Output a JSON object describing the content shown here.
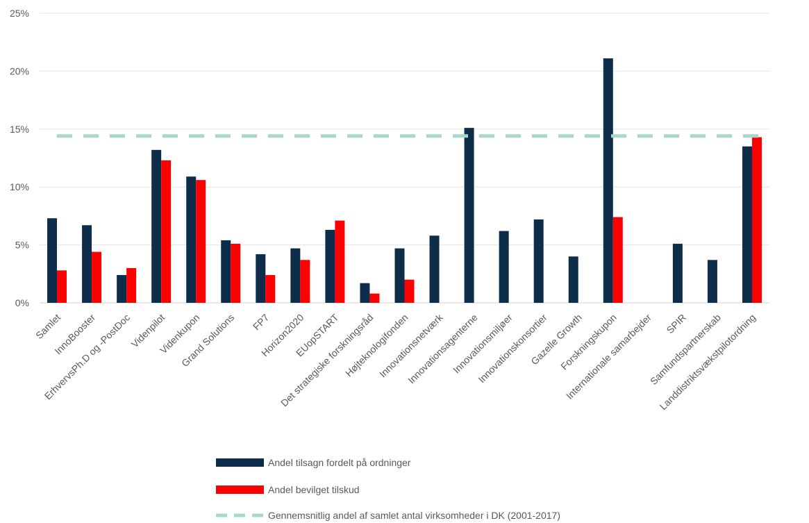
{
  "chart_data": {
    "type": "bar",
    "title": "",
    "xlabel": "",
    "ylabel": "",
    "ylim": [
      0,
      25
    ],
    "y_ticks": [
      "0%",
      "5%",
      "10%",
      "15%",
      "20%",
      "25%"
    ],
    "y_tick_values": [
      0,
      5,
      10,
      15,
      20,
      25
    ],
    "grid": true,
    "legend_position": "bottom",
    "categories": [
      "Samlet",
      "InnoBooster",
      "ErhvervsPh.D og -PostDoc",
      "Videnpilot",
      "Videnkupon",
      "Grand Solutions",
      "FP7",
      "Horizon2020",
      "EUopSTART",
      "Det strategiske forskningsråd",
      "Højteknologifonden",
      "Innovationsnetværk",
      "Innovationsagenterne",
      "Innovationsmiljøer",
      "Innovationskonsortier",
      "Gazelle Growth",
      "Forskningskupon",
      "Internationale samarbejder",
      "SPIR",
      "Samfundspartnerskab",
      "Landdistriktsvækstpilotordning"
    ],
    "series": [
      {
        "name": "Andel tilsagn fordelt på ordninger",
        "color": "#0e2d4a",
        "values": [
          7.3,
          6.7,
          2.4,
          13.2,
          10.9,
          5.4,
          4.2,
          4.7,
          6.3,
          1.7,
          4.7,
          5.8,
          15.1,
          6.2,
          7.2,
          4.0,
          21.1,
          0,
          5.1,
          3.7,
          13.5
        ]
      },
      {
        "name": "Andel bevilget tilskud",
        "color": "#ff0000",
        "values": [
          2.8,
          4.4,
          3.0,
          12.3,
          10.6,
          5.1,
          2.4,
          3.7,
          7.1,
          0.8,
          2.0,
          0,
          0,
          0,
          0,
          0,
          7.4,
          0,
          0,
          0,
          14.3
        ]
      }
    ],
    "reference_line": {
      "name": "Gennemsnitlig andel af samlet antal virksomheder i DK (2001-2017)",
      "value": 14.4,
      "color": "#a8d8c8",
      "style": "dashed"
    }
  }
}
